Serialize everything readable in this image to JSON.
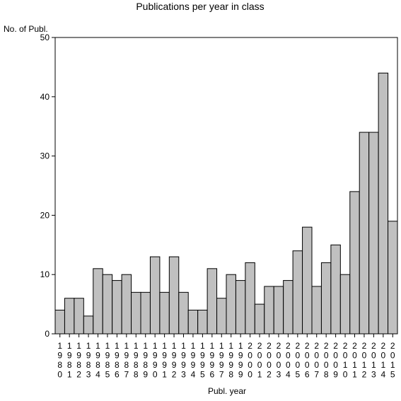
{
  "chart_data": {
    "type": "bar",
    "title": "Publications per year in class",
    "ylabel": "No. of Publ.",
    "xlabel": "Publ. year",
    "ylim": [
      0,
      50
    ],
    "yticks": [
      "0",
      "10",
      "20",
      "30",
      "40",
      "50"
    ],
    "grid": false,
    "bar_color": "#c0c0c0",
    "categories": [
      "1980",
      "1981",
      "1982",
      "1983",
      "1984",
      "1985",
      "1986",
      "1987",
      "1988",
      "1989",
      "1990",
      "1991",
      "1992",
      "1993",
      "1994",
      "1995",
      "1996",
      "1997",
      "1998",
      "1999",
      "2000",
      "2001",
      "2002",
      "2003",
      "2004",
      "2005",
      "2006",
      "2007",
      "2008",
      "2009",
      "2010",
      "2011",
      "2012",
      "2013",
      "2014",
      "2015"
    ],
    "values": [
      4,
      6,
      6,
      3,
      11,
      10,
      9,
      10,
      7,
      7,
      13,
      7,
      13,
      7,
      4,
      4,
      11,
      6,
      10,
      9,
      12,
      5,
      8,
      8,
      9,
      14,
      18,
      8,
      12,
      15,
      10,
      24,
      34,
      34,
      44,
      19
    ]
  }
}
